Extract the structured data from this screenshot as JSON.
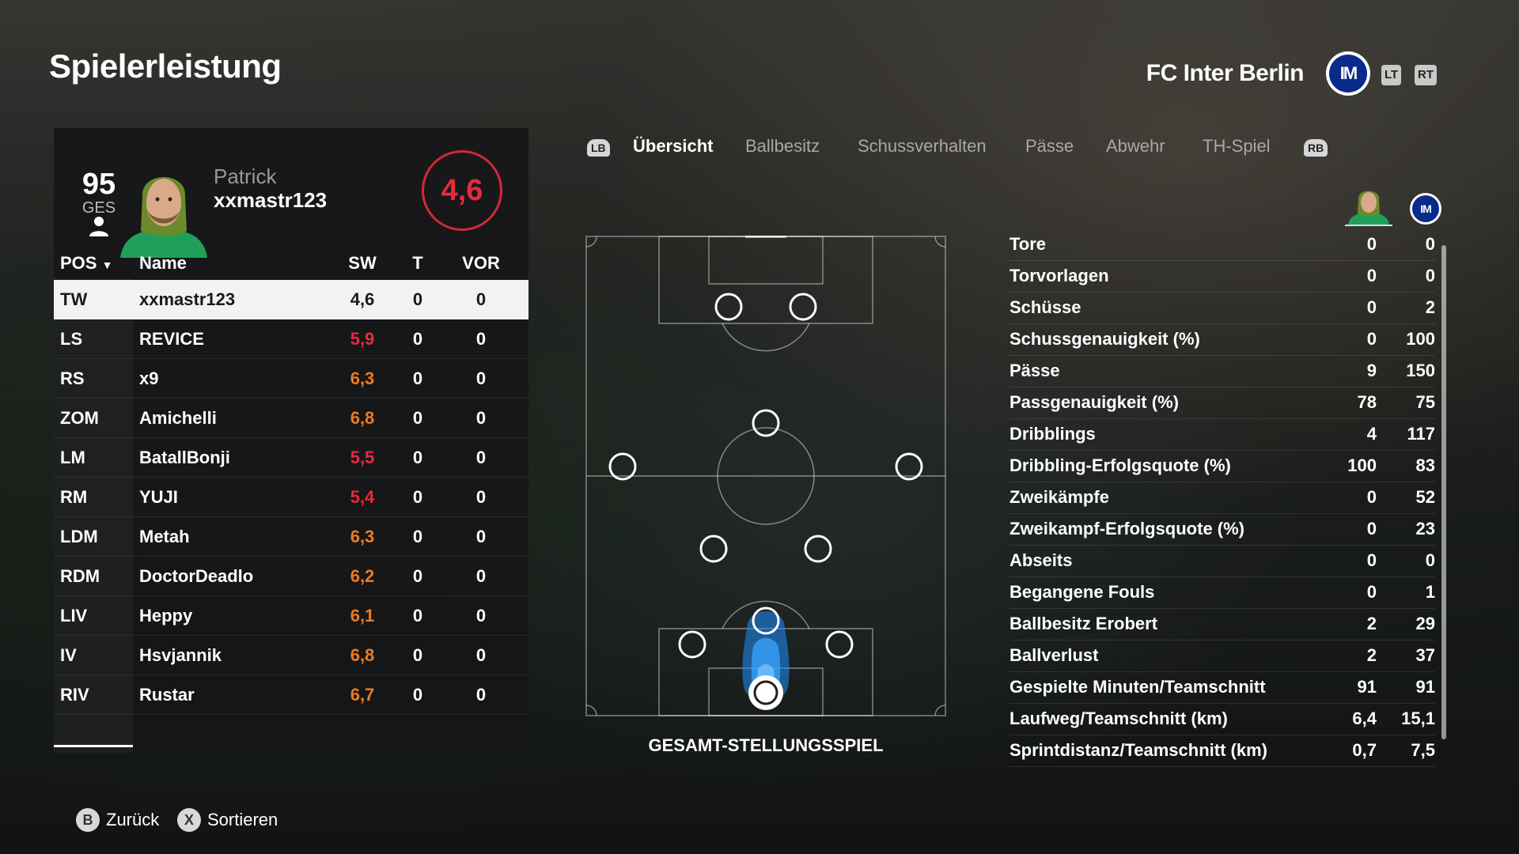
{
  "header": {
    "title": "Spielerleistung",
    "team_name": "FC Inter Berlin",
    "team_logo": "inter-logo",
    "lt_label": "LT",
    "rt_label": "RT"
  },
  "player_card": {
    "overall": "95",
    "overall_label": "GES",
    "first_name": "Patrick",
    "gamertag": "xxmastr123",
    "match_rating": "4,6",
    "rating_color": "#e8293d"
  },
  "player_table": {
    "columns": {
      "pos": "POS",
      "name": "Name",
      "sw": "SW",
      "t": "T",
      "vor": "VOR"
    },
    "rows": [
      {
        "pos": "TW",
        "name": "xxmastr123",
        "sw": "4,6",
        "t": "0",
        "vor": "0",
        "sw_color": "selected"
      },
      {
        "pos": "LS",
        "name": "REVICE",
        "sw": "5,9",
        "t": "0",
        "vor": "0",
        "sw_color": "red"
      },
      {
        "pos": "RS",
        "name": "x9",
        "sw": "6,3",
        "t": "0",
        "vor": "0",
        "sw_color": "orange"
      },
      {
        "pos": "ZOM",
        "name": "Amichelli",
        "sw": "6,8",
        "t": "0",
        "vor": "0",
        "sw_color": "orange"
      },
      {
        "pos": "LM",
        "name": "BatallBonji",
        "sw": "5,5",
        "t": "0",
        "vor": "0",
        "sw_color": "red"
      },
      {
        "pos": "RM",
        "name": "YUJI",
        "sw": "5,4",
        "t": "0",
        "vor": "0",
        "sw_color": "red"
      },
      {
        "pos": "LDM",
        "name": "Metah",
        "sw": "6,3",
        "t": "0",
        "vor": "0",
        "sw_color": "orange"
      },
      {
        "pos": "RDM",
        "name": "DoctorDeadlo",
        "sw": "6,2",
        "t": "0",
        "vor": "0",
        "sw_color": "orange"
      },
      {
        "pos": "LIV",
        "name": "Heppy",
        "sw": "6,1",
        "t": "0",
        "vor": "0",
        "sw_color": "orange"
      },
      {
        "pos": "IV",
        "name": "Hsvjannik",
        "sw": "6,8",
        "t": "0",
        "vor": "0",
        "sw_color": "orange"
      },
      {
        "pos": "RIV",
        "name": "Rustar",
        "sw": "6,7",
        "t": "0",
        "vor": "0",
        "sw_color": "orange"
      }
    ]
  },
  "tabs": {
    "lb": "LB",
    "rb": "RB",
    "items": [
      "Übersicht",
      "Ballbesitz",
      "Schussverhalten",
      "Pässe",
      "Abwehr",
      "TH-Spiel"
    ],
    "active": 0
  },
  "pitch": {
    "label": "GESAMT-STELLUNGSSPIEL",
    "heatmap_color": "#1e90ff"
  },
  "stats": {
    "rows": [
      {
        "label": "Tore",
        "player": "0",
        "team": "0"
      },
      {
        "label": "Torvorlagen",
        "player": "0",
        "team": "0"
      },
      {
        "label": "Schüsse",
        "player": "0",
        "team": "2"
      },
      {
        "label": "Schussgenauigkeit (%)",
        "player": "0",
        "team": "100"
      },
      {
        "label": "Pässe",
        "player": "9",
        "team": "150"
      },
      {
        "label": "Passgenauigkeit (%)",
        "player": "78",
        "team": "75"
      },
      {
        "label": "Dribblings",
        "player": "4",
        "team": "117"
      },
      {
        "label": "Dribbling-Erfolgsquote (%)",
        "player": "100",
        "team": "83"
      },
      {
        "label": "Zweikämpfe",
        "player": "0",
        "team": "52"
      },
      {
        "label": "Zweikampf-Erfolgsquote (%)",
        "player": "0",
        "team": "23"
      },
      {
        "label": "Abseits",
        "player": "0",
        "team": "0"
      },
      {
        "label": "Begangene Fouls",
        "player": "0",
        "team": "1"
      },
      {
        "label": "Ballbesitz Erobert",
        "player": "2",
        "team": "29"
      },
      {
        "label": "Ballverlust",
        "player": "2",
        "team": "37"
      },
      {
        "label": "Gespielte Minuten/Teamschnitt",
        "player": "91",
        "team": "91"
      },
      {
        "label": "Laufweg/Teamschnitt (km)",
        "player": "6,4",
        "team": "15,1"
      },
      {
        "label": "Sprintdistanz/Teamschnitt (km)",
        "player": "0,7",
        "team": "7,5"
      }
    ]
  },
  "footer": {
    "back_key": "B",
    "back_label": "Zurück",
    "sort_key": "X",
    "sort_label": "Sortieren"
  }
}
